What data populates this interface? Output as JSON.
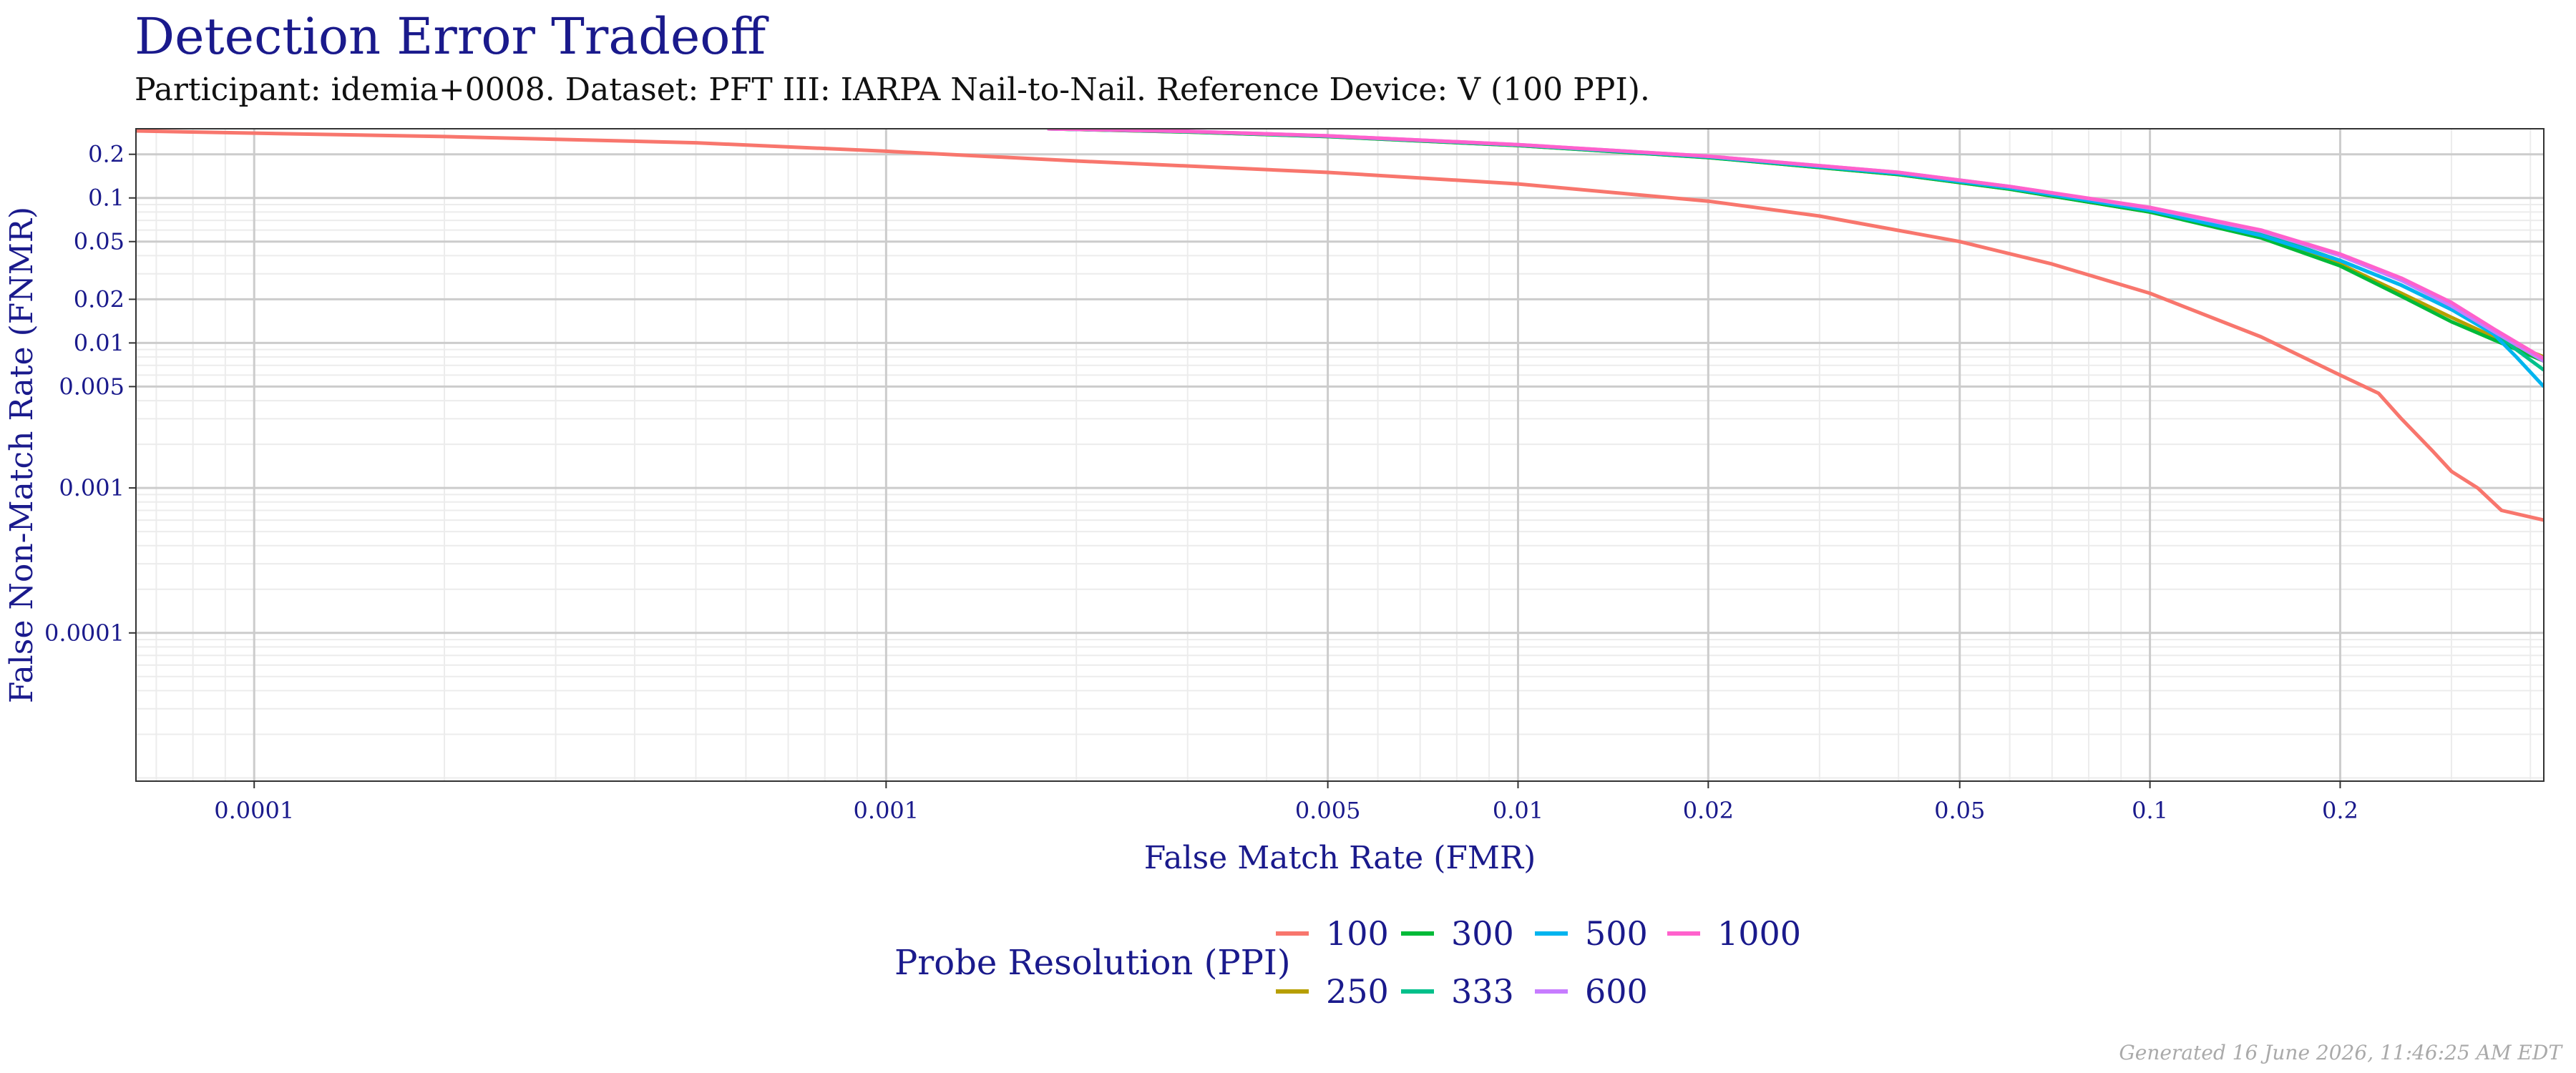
{
  "page": {
    "title": "Detection Error Tradeoff",
    "subtitle": "Participant: idemia+0008. Dataset: PFT III: IARPA Nail-to-Nail. Reference Device: V (100 PPI).",
    "footer": "Generated 16 June 2026, 11:46:25 AM EDT"
  },
  "colors": {
    "title": "#1a1a8c",
    "axis_text": "#1a1a8c",
    "grid_major": "#cccccc",
    "grid_minor": "#ececec"
  },
  "chart_data": {
    "type": "line",
    "xlabel": "False Match Rate (FMR)",
    "ylabel": "False Non-Match Rate (FNMR)",
    "x_scale": "log",
    "y_scale": "log",
    "xlim": [
      6.5e-05,
      0.42
    ],
    "ylim": [
      9.5e-06,
      0.3
    ],
    "x_ticks": [
      0.0001,
      0.001,
      0.005,
      0.01,
      0.02,
      0.05,
      0.1,
      0.2
    ],
    "x_tick_labels": [
      "0.0001",
      "0.001",
      "0.005",
      "0.01",
      "0.02",
      "0.05",
      "0.1",
      "0.2"
    ],
    "y_ticks": [
      0.0001,
      0.001,
      0.005,
      0.01,
      0.02,
      0.05,
      0.1,
      0.2
    ],
    "y_tick_labels": [
      "0.0001",
      "0.001",
      "0.005",
      "0.01",
      "0.02",
      "0.05",
      "0.1",
      "0.2"
    ],
    "grid": true,
    "legend": {
      "title": "Probe Resolution (PPI)",
      "position": "bottom",
      "rows": [
        [
          "100",
          "300",
          "500",
          "1000"
        ],
        [
          "250",
          "333",
          "600"
        ]
      ]
    },
    "series": [
      {
        "name": "100",
        "color": "#F8766D",
        "x": [
          6.5e-05,
          0.0001,
          0.0002,
          0.0005,
          0.001,
          0.002,
          0.005,
          0.01,
          0.02,
          0.03,
          0.05,
          0.07,
          0.1,
          0.15,
          0.2,
          0.23,
          0.25,
          0.28,
          0.3,
          0.33,
          0.36,
          0.42
        ],
        "y": [
          0.29,
          0.28,
          0.265,
          0.24,
          0.21,
          0.18,
          0.15,
          0.125,
          0.095,
          0.075,
          0.05,
          0.035,
          0.022,
          0.011,
          0.006,
          0.0045,
          0.003,
          0.0018,
          0.0013,
          0.001,
          0.0007,
          0.0006
        ]
      },
      {
        "name": "250",
        "color": "#B79F00",
        "x": [
          0.0018,
          0.003,
          0.005,
          0.01,
          0.02,
          0.04,
          0.06,
          0.1,
          0.15,
          0.2,
          0.25,
          0.3,
          0.35,
          0.42
        ],
        "y": [
          0.3,
          0.285,
          0.265,
          0.23,
          0.19,
          0.145,
          0.115,
          0.08,
          0.055,
          0.035,
          0.022,
          0.015,
          0.011,
          0.008
        ]
      },
      {
        "name": "300",
        "color": "#00BA38",
        "x": [
          0.0018,
          0.003,
          0.005,
          0.01,
          0.02,
          0.04,
          0.06,
          0.1,
          0.15,
          0.2,
          0.25,
          0.3,
          0.35,
          0.42
        ],
        "y": [
          0.3,
          0.285,
          0.265,
          0.23,
          0.19,
          0.145,
          0.115,
          0.08,
          0.053,
          0.034,
          0.021,
          0.014,
          0.0105,
          0.0075
        ]
      },
      {
        "name": "333",
        "color": "#00C08B",
        "x": [
          0.0018,
          0.003,
          0.005,
          0.01,
          0.02,
          0.04,
          0.06,
          0.1,
          0.15,
          0.2,
          0.25,
          0.3,
          0.35,
          0.38,
          0.42
        ],
        "y": [
          0.3,
          0.287,
          0.267,
          0.232,
          0.192,
          0.148,
          0.118,
          0.083,
          0.057,
          0.037,
          0.025,
          0.017,
          0.012,
          0.009,
          0.0065
        ]
      },
      {
        "name": "500",
        "color": "#00B4EF",
        "x": [
          0.0018,
          0.003,
          0.005,
          0.01,
          0.02,
          0.04,
          0.06,
          0.1,
          0.15,
          0.2,
          0.25,
          0.3,
          0.35,
          0.38,
          0.42
        ],
        "y": [
          0.3,
          0.287,
          0.267,
          0.232,
          0.192,
          0.147,
          0.117,
          0.082,
          0.055,
          0.037,
          0.025,
          0.017,
          0.0115,
          0.008,
          0.005
        ]
      },
      {
        "name": "600",
        "color": "#C77CFF",
        "x": [
          0.0018,
          0.003,
          0.005,
          0.01,
          0.02,
          0.04,
          0.06,
          0.1,
          0.15,
          0.2,
          0.25,
          0.3,
          0.35,
          0.42
        ],
        "y": [
          0.3,
          0.288,
          0.268,
          0.233,
          0.194,
          0.15,
          0.12,
          0.085,
          0.059,
          0.04,
          0.027,
          0.018,
          0.012,
          0.0075
        ]
      },
      {
        "name": "1000",
        "color": "#FF61CC",
        "x": [
          0.0018,
          0.003,
          0.005,
          0.01,
          0.02,
          0.04,
          0.06,
          0.1,
          0.15,
          0.2,
          0.25,
          0.3,
          0.35,
          0.42
        ],
        "y": [
          0.3,
          0.288,
          0.268,
          0.233,
          0.194,
          0.15,
          0.12,
          0.086,
          0.06,
          0.041,
          0.028,
          0.019,
          0.0125,
          0.0078
        ]
      }
    ]
  }
}
